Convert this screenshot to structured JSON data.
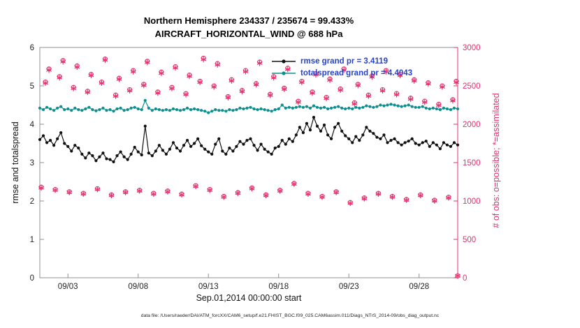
{
  "figure": {
    "title_line1": "Northern Hemisphere 234337 / 235674 = 99.433%",
    "title_line2": "AIRCRAFT_HORIZONTAL_WIND @ 688 hPa",
    "caption": "data file: /Users/raeder/DAI/ATM_forcXX/CAM6_setup/f.e21.FHIST_BGC.f09_025.CAM6assim.011/Diags_NTrS_2014-09/obs_diag_output.nc"
  },
  "legend": {
    "rmse_label": "rmse grand pr = 3.4119",
    "totalspread_label": "totalspread grand pr = 4.4043"
  },
  "colors": {
    "rmse": "#111111",
    "totalspread": "#0e8f8f",
    "obs_pink": "#e62e6b",
    "legend_text": "#2743d0",
    "axis_box": "#909090",
    "tick_text": "#222222"
  },
  "chart_data": {
    "type": "line",
    "title": "Northern Hemisphere 234337 / 235674 = 99.433%",
    "subtitle": "AIRCRAFT_HORIZONTAL_WIND @ 688 hPa",
    "xlabel": "Sep.01,2014 00:00:00 start",
    "ylabel_left": "rmse and totalspread",
    "ylabel_right": "# of obs: o=possible; *=assimilated",
    "x_range_days": [
      1,
      30.75
    ],
    "ylim_left": [
      0,
      6
    ],
    "ylim_right": [
      0,
      3000
    ],
    "grid": false,
    "legend_position": "top-center-inside",
    "legend_values": {
      "rmse_grand_pr": 3.4119,
      "totalspread_grand_pr": 4.4043
    },
    "x_ticks": [
      {
        "day": 3,
        "label": "09/03"
      },
      {
        "day": 8,
        "label": "09/08"
      },
      {
        "day": 13,
        "label": "09/13"
      },
      {
        "day": 18,
        "label": "09/18"
      },
      {
        "day": 23,
        "label": "09/23"
      },
      {
        "day": 28,
        "label": "09/28"
      }
    ],
    "y_left_ticks": [
      0,
      1,
      2,
      3,
      4,
      5,
      6
    ],
    "y_right_ticks": [
      0,
      500,
      1000,
      1500,
      2000,
      2500,
      3000
    ],
    "series": [
      {
        "name": "totalspread",
        "color": "#0e8f8f",
        "x_start": 1,
        "x_step": 0.25,
        "values": [
          4.42,
          4.38,
          4.44,
          4.4,
          4.36,
          4.42,
          4.46,
          4.38,
          4.4,
          4.36,
          4.42,
          4.38,
          4.36,
          4.4,
          4.44,
          4.38,
          4.35,
          4.38,
          4.42,
          4.36,
          4.38,
          4.34,
          4.4,
          4.42,
          4.36,
          4.38,
          4.42,
          4.44,
          4.4,
          4.38,
          4.62,
          4.42,
          4.36,
          4.4,
          4.38,
          4.36,
          4.38,
          4.36,
          4.4,
          4.38,
          4.36,
          4.38,
          4.42,
          4.38,
          4.4,
          4.38,
          4.36,
          4.34,
          4.3,
          4.34,
          4.38,
          4.36,
          4.36,
          4.34,
          4.38,
          4.36,
          4.38,
          4.42,
          4.4,
          4.42,
          4.44,
          4.4,
          4.38,
          4.4,
          4.38,
          4.36,
          4.34,
          4.38,
          4.4,
          4.5,
          4.42,
          4.44,
          4.42,
          4.44,
          4.46,
          4.44,
          4.46,
          4.42,
          4.48,
          4.44,
          4.42,
          4.44,
          4.4,
          4.42,
          4.44,
          4.46,
          4.42,
          4.4,
          4.42,
          4.4,
          4.44,
          4.42,
          4.44,
          4.48,
          4.46,
          4.44,
          4.46,
          4.5,
          4.48,
          4.5,
          4.52,
          4.5,
          4.48,
          4.46,
          4.48,
          4.5,
          4.46,
          4.44,
          4.44,
          4.46,
          4.42,
          4.4,
          4.42,
          4.4,
          4.38,
          4.42,
          4.4,
          4.38,
          4.42,
          4.4
        ]
      },
      {
        "name": "rmse",
        "color": "#111111",
        "x_start": 1,
        "x_step": 0.25,
        "values": [
          3.6,
          3.7,
          3.52,
          3.58,
          3.45,
          3.62,
          3.78,
          3.5,
          3.42,
          3.3,
          3.45,
          3.38,
          3.22,
          3.12,
          3.25,
          3.18,
          3.05,
          3.15,
          3.25,
          3.1,
          3.08,
          3.02,
          3.18,
          3.28,
          3.15,
          3.08,
          3.22,
          3.4,
          3.28,
          3.2,
          3.95,
          3.25,
          3.18,
          3.3,
          3.45,
          3.32,
          3.22,
          3.35,
          3.52,
          3.38,
          3.3,
          3.45,
          3.58,
          3.42,
          3.5,
          3.62,
          3.44,
          3.35,
          3.28,
          3.22,
          3.48,
          3.62,
          3.3,
          3.22,
          3.38,
          3.3,
          3.42,
          3.55,
          3.48,
          3.58,
          3.62,
          3.45,
          3.32,
          3.48,
          3.35,
          3.28,
          3.22,
          3.38,
          3.42,
          3.58,
          3.48,
          3.62,
          3.55,
          3.72,
          3.92,
          3.78,
          4.02,
          3.85,
          4.18,
          3.95,
          3.82,
          3.98,
          3.72,
          3.62,
          3.92,
          4.02,
          3.82,
          3.7,
          3.62,
          3.52,
          3.68,
          3.58,
          3.72,
          3.92,
          3.82,
          3.76,
          3.66,
          3.62,
          3.72,
          3.52,
          3.58,
          3.62,
          3.52,
          3.46,
          3.52,
          3.56,
          3.62,
          3.5,
          3.46,
          3.52,
          3.56,
          3.42,
          3.52,
          3.46,
          3.36,
          3.52,
          3.46,
          3.42,
          3.52,
          3.46
        ]
      }
    ],
    "obs": {
      "axis": "right",
      "x": [
        1.1,
        1.4,
        1.65,
        2.1,
        2.4,
        2.65,
        3.1,
        3.4,
        3.65,
        4.1,
        4.4,
        4.65,
        5.1,
        5.4,
        5.65,
        6.1,
        6.4,
        6.65,
        7.1,
        7.4,
        7.65,
        8.1,
        8.4,
        8.65,
        9.1,
        9.4,
        9.65,
        10.1,
        10.4,
        10.65,
        11.1,
        11.4,
        11.65,
        12.1,
        12.4,
        12.65,
        13.1,
        13.4,
        13.65,
        14.1,
        14.4,
        14.65,
        15.1,
        15.4,
        15.65,
        16.1,
        16.4,
        16.65,
        17.1,
        17.4,
        17.65,
        18.1,
        18.4,
        18.65,
        19.1,
        19.4,
        19.65,
        20.1,
        20.4,
        20.65,
        21.1,
        21.4,
        21.65,
        22.1,
        22.4,
        22.65,
        23.1,
        23.4,
        23.65,
        24.1,
        24.4,
        24.65,
        25.1,
        25.4,
        25.65,
        26.1,
        26.4,
        26.65,
        27.1,
        27.4,
        27.65,
        28.1,
        28.4,
        28.65,
        29.1,
        29.4,
        29.65,
        30.1,
        30.4,
        30.65,
        30.75
      ],
      "possible": [
        1180,
        2550,
        2720,
        1150,
        2620,
        2830,
        1120,
        2480,
        2760,
        1100,
        2430,
        2650,
        1160,
        2550,
        2850,
        1080,
        2380,
        2600,
        1120,
        2450,
        2700,
        1140,
        2520,
        2820,
        1100,
        2420,
        2680,
        1130,
        2480,
        2750,
        1090,
        2400,
        2640,
        1200,
        2560,
        2860,
        1150,
        2500,
        2790,
        1060,
        2360,
        2580,
        1110,
        2440,
        2700,
        1170,
        2530,
        2810,
        1080,
        2390,
        2620,
        1140,
        2470,
        2730,
        1230,
        2300,
        2560,
        1100,
        2420,
        2660,
        1060,
        2350,
        2590,
        1120,
        2460,
        2720,
        980,
        2280,
        2520,
        1040,
        2380,
        2630,
        1100,
        2450,
        2700,
        1060,
        2400,
        2650,
        1020,
        2340,
        2580,
        1080,
        2300,
        2540,
        1010,
        2260,
        2500,
        1050,
        2320,
        2560,
        25
      ],
      "assimilated": [
        1172,
        2538,
        2706,
        1143,
        2607,
        2815,
        1113,
        2468,
        2746,
        1094,
        2418,
        2637,
        1152,
        2538,
        2836,
        1073,
        2368,
        2587,
        1113,
        2438,
        2686,
        1133,
        2508,
        2806,
        1093,
        2408,
        2666,
        1123,
        2468,
        2736,
        1083,
        2388,
        2627,
        1192,
        2547,
        2845,
        1142,
        2488,
        2776,
        1053,
        2348,
        2567,
        1103,
        2428,
        2687,
        1162,
        2517,
        2796,
        1073,
        2378,
        2607,
        1132,
        2458,
        2716,
        1222,
        2288,
        2547,
        1093,
        2408,
        2646,
        1053,
        2338,
        2577,
        1113,
        2447,
        2706,
        973,
        2268,
        2507,
        1033,
        2368,
        2617,
        1093,
        2438,
        2687,
        1053,
        2388,
        2637,
        1013,
        2328,
        2567,
        1073,
        2288,
        2527,
        1003,
        2248,
        2487,
        1043,
        2308,
        2547,
        25
      ]
    }
  }
}
